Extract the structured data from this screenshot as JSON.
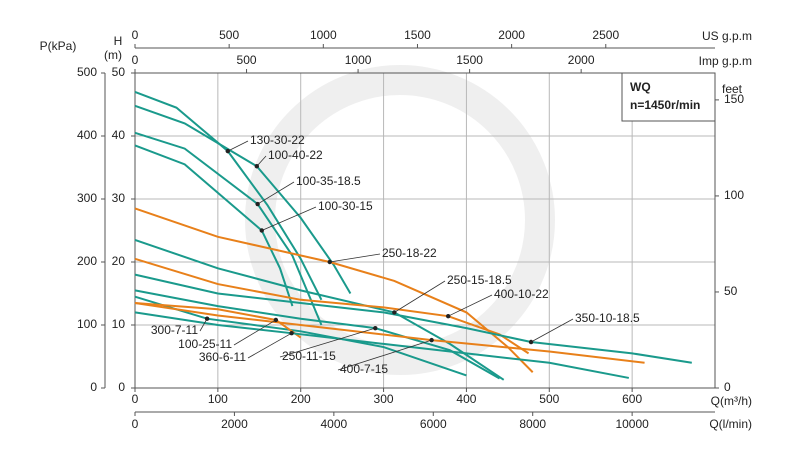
{
  "chart_data": {
    "type": "line",
    "annotations": {
      "model": "WQ",
      "speed": "n=1450r/min"
    },
    "x_label": "Q(m³/h)",
    "y_label": "H",
    "y_unit": "(m)",
    "xlim": [
      0,
      700
    ],
    "xticks": [
      0,
      100,
      200,
      300,
      400,
      500,
      600
    ],
    "ylim": [
      0,
      50
    ],
    "yticks": [
      0,
      10,
      20,
      30,
      40,
      50
    ],
    "grid": true,
    "secondary_axes": [
      {
        "label": "P(kPa)",
        "side": "left",
        "lim": [
          0,
          500
        ],
        "ticks": [
          0,
          100,
          200,
          300,
          400,
          500
        ]
      },
      {
        "label": "feet",
        "side": "right",
        "lim": [
          0,
          164
        ],
        "ticks": [
          0,
          50,
          100,
          150
        ]
      },
      {
        "label": "US g.p.m",
        "side": "top",
        "lim": [
          0,
          3080
        ],
        "ticks": [
          0,
          500,
          1000,
          1500,
          2000,
          2500
        ]
      },
      {
        "label": "Imp g.p.m",
        "side": "top",
        "lim": [
          0,
          2600
        ],
        "ticks": [
          0,
          500,
          1000,
          1500,
          2000
        ]
      },
      {
        "label": "Q(l/min)",
        "side": "bottom",
        "lim": [
          0,
          11667
        ],
        "ticks": [
          0,
          2000,
          4000,
          6000,
          8000,
          10000
        ]
      }
    ],
    "series": [
      {
        "name": "130-30-22",
        "color": "#1a9a8c",
        "x": [
          0,
          50,
          112,
          160,
          200,
          225
        ],
        "values": [
          47,
          44.5,
          37.6,
          29,
          20.5,
          14
        ]
      },
      {
        "name": "100-40-22",
        "color": "#1a9a8c",
        "x": [
          0,
          60,
          147,
          200,
          240,
          260
        ],
        "values": [
          44.8,
          42,
          35.2,
          27,
          19.5,
          15
        ]
      },
      {
        "name": "100-35-18.5",
        "color": "#1a9a8c",
        "x": [
          0,
          60,
          148,
          190,
          225
        ],
        "values": [
          40.5,
          38,
          29.2,
          21,
          10
        ]
      },
      {
        "name": "100-30-15",
        "color": "#1a9a8c",
        "x": [
          0,
          60,
          153,
          175,
          190
        ],
        "values": [
          38.5,
          35.5,
          25,
          19,
          13
        ]
      },
      {
        "name": "250-18-22",
        "color": "#e8801a",
        "x": [
          0,
          100,
          235,
          313,
          400,
          450,
          480
        ],
        "values": [
          28.5,
          24,
          20,
          17,
          12,
          6.5,
          2.5
        ]
      },
      {
        "name": "250-15-18.5",
        "color": "#1a9a8c",
        "x": [
          0,
          100,
          200,
          313,
          380,
          445
        ],
        "values": [
          23.5,
          19,
          15.5,
          12,
          7,
          1.3
        ]
      },
      {
        "name": "400-10-22",
        "color": "#e8801a",
        "x": [
          0,
          100,
          200,
          300,
          378,
          440,
          475
        ],
        "values": [
          20.5,
          16.5,
          14,
          12.8,
          11.4,
          8.5,
          5.5
        ]
      },
      {
        "name": "350-10-18.5",
        "color": "#1a9a8c",
        "x": [
          0,
          100,
          200,
          300,
          400,
          478,
          600,
          672
        ],
        "values": [
          18,
          15,
          13.5,
          12,
          9.5,
          7.3,
          5.5,
          4
        ]
      },
      {
        "name": "300-7-11",
        "color": "#1a9a8c",
        "x": [
          0,
          87,
          200,
          300,
          400
        ],
        "values": [
          14.5,
          11,
          9,
          6.5,
          2
        ]
      },
      {
        "name": "100-25-11",
        "color": "#e8801a",
        "x": [
          0,
          100,
          170,
          200
        ],
        "values": [
          13.5,
          12.5,
          10.8,
          8
        ]
      },
      {
        "name": "360-6-11",
        "color": "#1a9a8c",
        "x": [
          0,
          100,
          189,
          300,
          400,
          500,
          596
        ],
        "values": [
          12,
          10,
          8.7,
          7,
          5.5,
          4,
          1.6
        ]
      },
      {
        "name": "250-11-15",
        "color": "#1a9a8c",
        "x": [
          0,
          100,
          200,
          290,
          380,
          440
        ],
        "values": [
          15.5,
          13,
          11,
          9.5,
          6,
          1.5
        ]
      },
      {
        "name": "400-7-15",
        "color": "#e8801a",
        "x": [
          0,
          100,
          200,
          358,
          500,
          615
        ],
        "values": [
          13.5,
          11.5,
          10,
          7.6,
          5.8,
          4
        ]
      }
    ]
  }
}
